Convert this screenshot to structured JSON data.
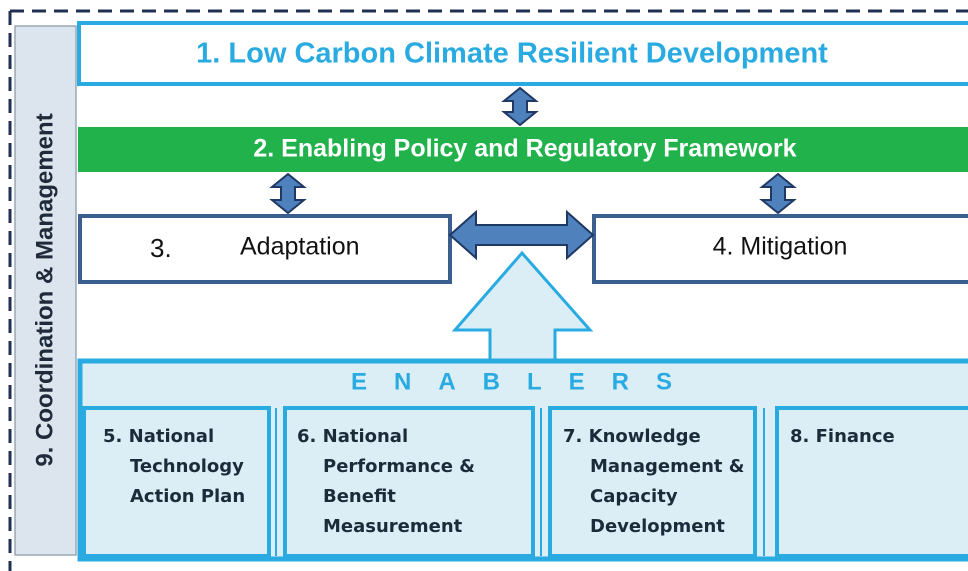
{
  "frame_label": "9. Coordination & Management",
  "goal": "1. Low Carbon Climate Resilient Development",
  "policy": "2. Enabling Policy and Regulatory Framework",
  "adaptation": {
    "number": "3.",
    "label": "Adaptation"
  },
  "mitigation": "4. Mitigation",
  "enablers": {
    "title": "ENABLERS",
    "items": [
      {
        "lines": [
          "5. National",
          "Technology",
          "Action Plan"
        ]
      },
      {
        "lines": [
          "6. National",
          "Performance &",
          "Benefit",
          "Measurement"
        ]
      },
      {
        "lines": [
          "7. Knowledge",
          "Management &",
          "Capacity",
          "Development"
        ]
      },
      {
        "lines": [
          "8. Finance"
        ]
      }
    ]
  }
}
